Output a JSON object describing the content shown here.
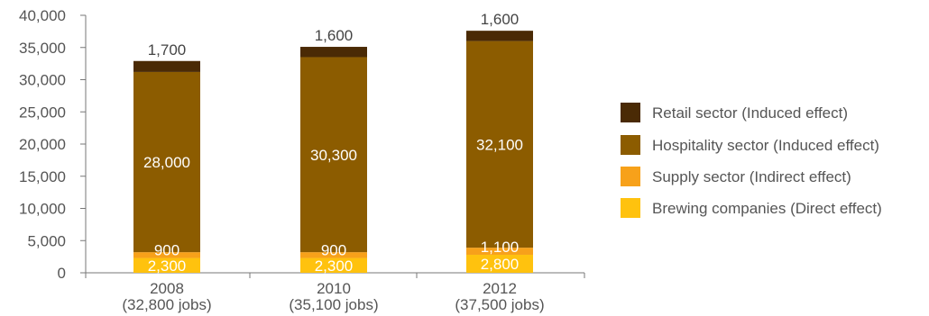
{
  "chart_data": {
    "type": "bar",
    "stacked": true,
    "categories": [
      "2008",
      "2010",
      "2012"
    ],
    "category_sublabels": [
      "(32,800 jobs)",
      "(35,100 jobs)",
      "(37,500 jobs)"
    ],
    "series": [
      {
        "name": "Brewing companies (Direct effect)",
        "values": [
          2300,
          2300,
          2800
        ],
        "labels": [
          "2,300",
          "2,300",
          "2,800"
        ],
        "color": "#ffc20e",
        "label_color": "#ffffff"
      },
      {
        "name": "Supply sector (Indirect effect)",
        "values": [
          900,
          900,
          1100
        ],
        "labels": [
          "900",
          "900",
          "1,100"
        ],
        "color": "#f7a11a",
        "label_color": "#ffffff"
      },
      {
        "name": "Hospitality sector (Induced effect)",
        "values": [
          28000,
          30300,
          32100
        ],
        "labels": [
          "28,000",
          "30,300",
          "32,100"
        ],
        "color": "#8c5c00",
        "label_color": "#ffffff"
      },
      {
        "name": "Retail sector (Induced effect)",
        "values": [
          1700,
          1600,
          1600
        ],
        "labels": [
          "1,700",
          "1,600",
          "1,600"
        ],
        "color": "#4a2a05",
        "label_color": "#444444"
      }
    ],
    "ylim": [
      0,
      40000
    ],
    "yticks": [
      0,
      5000,
      10000,
      15000,
      20000,
      25000,
      30000,
      35000,
      40000
    ],
    "ytick_labels": [
      "0",
      "5,000",
      "10,000",
      "15,000",
      "20,000",
      "25,000",
      "30,000",
      "35,000",
      "40,000"
    ],
    "title": "",
    "xlabel": "",
    "ylabel": "",
    "grid": false,
    "legend_position": "right"
  }
}
